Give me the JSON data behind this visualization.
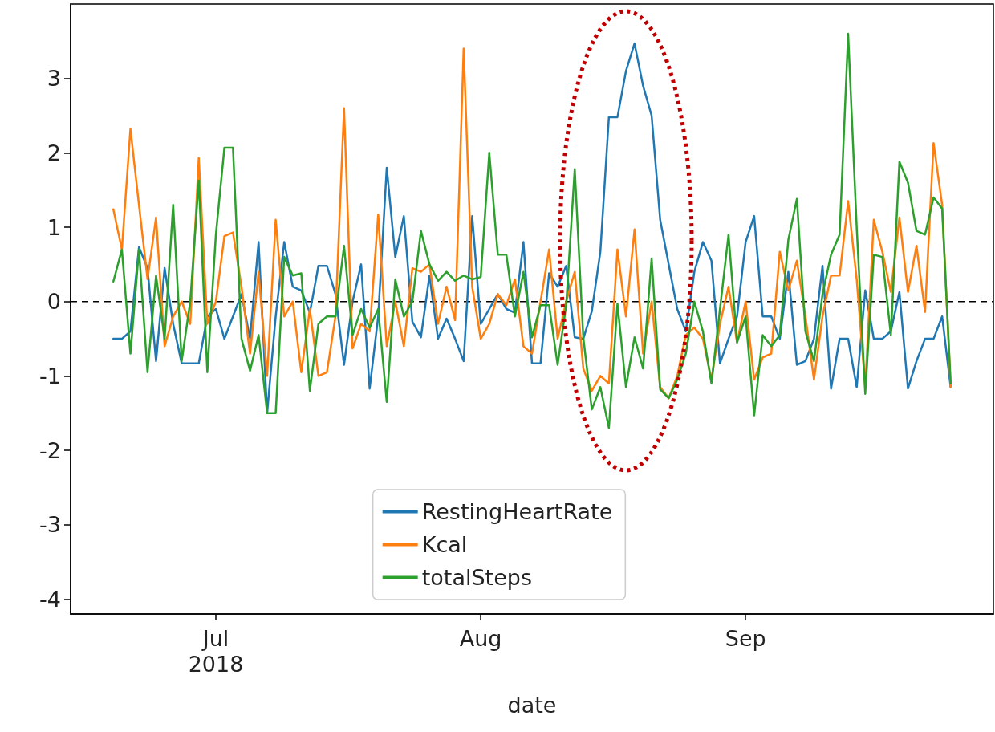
{
  "chart_data": {
    "type": "line",
    "xlabel": "date",
    "legend": "bottom",
    "grid": false,
    "marker": "none",
    "line_style": "solid",
    "x": [
      "2018-06-19",
      "2018-06-20",
      "2018-06-21",
      "2018-06-22",
      "2018-06-23",
      "2018-06-24",
      "2018-06-25",
      "2018-06-26",
      "2018-06-27",
      "2018-06-28",
      "2018-06-29",
      "2018-06-30",
      "2018-07-01",
      "2018-07-02",
      "2018-07-03",
      "2018-07-04",
      "2018-07-05",
      "2018-07-06",
      "2018-07-07",
      "2018-07-08",
      "2018-07-09",
      "2018-07-10",
      "2018-07-11",
      "2018-07-12",
      "2018-07-13",
      "2018-07-14",
      "2018-07-15",
      "2018-07-16",
      "2018-07-17",
      "2018-07-18",
      "2018-07-19",
      "2018-07-20",
      "2018-07-21",
      "2018-07-22",
      "2018-07-23",
      "2018-07-24",
      "2018-07-25",
      "2018-07-26",
      "2018-07-27",
      "2018-07-28",
      "2018-07-29",
      "2018-07-30",
      "2018-07-31",
      "2018-08-01",
      "2018-08-02",
      "2018-08-03",
      "2018-08-04",
      "2018-08-05",
      "2018-08-06",
      "2018-08-07",
      "2018-08-08",
      "2018-08-09",
      "2018-08-10",
      "2018-08-11",
      "2018-08-12",
      "2018-08-13",
      "2018-08-14",
      "2018-08-15",
      "2018-08-16",
      "2018-08-17",
      "2018-08-18",
      "2018-08-19",
      "2018-08-20",
      "2018-08-21",
      "2018-08-22",
      "2018-08-23",
      "2018-08-24",
      "2018-08-25",
      "2018-08-26",
      "2018-08-27",
      "2018-08-28",
      "2018-08-29",
      "2018-08-30",
      "2018-08-31",
      "2018-09-01",
      "2018-09-02",
      "2018-09-03",
      "2018-09-04",
      "2018-09-05",
      "2018-09-06",
      "2018-09-07",
      "2018-09-08",
      "2018-09-09",
      "2018-09-10",
      "2018-09-11",
      "2018-09-12",
      "2018-09-13",
      "2018-09-14",
      "2018-09-15",
      "2018-09-16",
      "2018-09-17",
      "2018-09-18",
      "2018-09-19",
      "2018-09-20",
      "2018-09-21",
      "2018-09-22",
      "2018-09-23",
      "2018-09-24",
      "2018-09-25"
    ],
    "series": [
      {
        "name": "RestingHeartRate",
        "color": "#1f77b4",
        "values": [
          -0.5,
          -0.5,
          -0.4,
          0.73,
          0.45,
          -0.8,
          0.45,
          -0.3,
          -0.83,
          -0.83,
          -0.83,
          -0.2,
          -0.1,
          -0.5,
          -0.2,
          0.1,
          -0.5,
          0.8,
          -1.5,
          -0.2,
          0.8,
          0.2,
          0.15,
          -0.15,
          0.48,
          0.48,
          0.1,
          -0.85,
          0.0,
          0.5,
          -1.17,
          -0.2,
          1.8,
          0.6,
          1.15,
          -0.27,
          -0.48,
          0.35,
          -0.5,
          -0.23,
          -0.5,
          -0.8,
          1.15,
          -0.3,
          -0.1,
          0.1,
          -0.1,
          -0.15,
          0.8,
          -0.83,
          -0.83,
          0.38,
          0.2,
          0.48,
          -0.48,
          -0.5,
          -0.13,
          0.67,
          2.48,
          2.48,
          3.1,
          3.47,
          2.9,
          2.5,
          1.1,
          0.5,
          -0.1,
          -0.4,
          0.4,
          0.8,
          0.55,
          -0.83,
          -0.5,
          -0.2,
          0.8,
          1.15,
          -0.2,
          -0.2,
          -0.5,
          0.4,
          -0.85,
          -0.8,
          -0.5,
          0.48,
          -1.17,
          -0.5,
          -0.5,
          -1.15,
          0.15,
          -0.5,
          -0.5,
          -0.4,
          0.13,
          -1.17,
          -0.8,
          -0.5,
          -0.5,
          -0.2,
          -1.15
        ]
      },
      {
        "name": "Kcal",
        "color": "#ff7f0e",
        "values": [
          1.24,
          0.7,
          2.32,
          1.3,
          0.3,
          1.13,
          -0.6,
          -0.2,
          0.0,
          -0.3,
          1.93,
          -0.3,
          0.0,
          0.88,
          0.93,
          0.2,
          -0.7,
          0.4,
          -1.0,
          1.1,
          -0.2,
          0.0,
          -0.95,
          -0.1,
          -1.0,
          -0.95,
          -0.2,
          2.6,
          -0.63,
          -0.3,
          -0.4,
          1.17,
          -0.6,
          0.0,
          -0.6,
          0.45,
          0.4,
          0.5,
          -0.3,
          0.2,
          -0.25,
          3.4,
          0.2,
          -0.5,
          -0.3,
          0.1,
          -0.05,
          0.3,
          -0.6,
          -0.7,
          0.0,
          0.7,
          -0.5,
          0.0,
          0.4,
          -0.9,
          -1.2,
          -1.0,
          -1.1,
          0.7,
          -0.2,
          0.97,
          -0.7,
          0.0,
          -1.15,
          -1.3,
          -1.0,
          -0.45,
          -0.35,
          -0.5,
          -1.05,
          -0.3,
          0.2,
          -0.55,
          0.0,
          -1.05,
          -0.75,
          -0.7,
          0.67,
          0.15,
          0.55,
          -0.2,
          -1.05,
          -0.2,
          0.35,
          0.35,
          1.35,
          0.3,
          -1.15,
          1.1,
          0.67,
          0.13,
          1.13,
          0.13,
          0.75,
          -0.14,
          2.13,
          1.3,
          -1.15
        ]
      },
      {
        "name": "totalSteps",
        "color": "#2ca02c",
        "values": [
          0.27,
          0.7,
          -0.7,
          0.7,
          -0.95,
          0.35,
          -0.5,
          1.3,
          -0.8,
          0.0,
          1.63,
          -0.95,
          0.9,
          2.07,
          2.07,
          -0.5,
          -0.93,
          -0.45,
          -1.5,
          -1.5,
          0.6,
          0.35,
          0.38,
          -1.2,
          -0.3,
          -0.2,
          -0.2,
          0.75,
          -0.45,
          -0.1,
          -0.35,
          -0.1,
          -1.35,
          0.3,
          -0.2,
          0.0,
          0.95,
          0.5,
          0.28,
          0.4,
          0.28,
          0.35,
          0.3,
          0.33,
          2.0,
          0.63,
          0.63,
          -0.2,
          0.4,
          -0.48,
          -0.05,
          -0.05,
          -0.85,
          -0.05,
          1.78,
          -0.48,
          -1.45,
          -1.15,
          -1.7,
          -0.03,
          -1.15,
          -0.48,
          -0.9,
          0.58,
          -1.18,
          -1.3,
          -1.05,
          -0.7,
          0.0,
          -0.4,
          -1.1,
          -0.1,
          0.9,
          -0.55,
          -0.2,
          -1.53,
          -0.45,
          -0.6,
          -0.45,
          0.83,
          1.38,
          -0.4,
          -0.8,
          0.1,
          0.63,
          0.9,
          3.6,
          1.0,
          -1.24,
          0.63,
          0.6,
          -0.45,
          1.88,
          1.6,
          0.95,
          0.9,
          1.4,
          1.25,
          -1.1
        ]
      }
    ],
    "xlim": [
      "2018-06-14",
      "2018-09-30"
    ],
    "xticks": [
      {
        "value": "2018-07-01",
        "label": "Jul\n2018"
      },
      {
        "value": "2018-08-01",
        "label": "Aug"
      },
      {
        "value": "2018-09-01",
        "label": "Sep"
      }
    ],
    "ylim": [
      -4.2,
      4
    ],
    "yticks": [
      -4,
      -3,
      -2,
      -1,
      0,
      1,
      2,
      3
    ],
    "ref_lines": [
      {
        "axis": "y",
        "value": 0,
        "color": "#000000",
        "line_style": "dashed"
      }
    ]
  }
}
